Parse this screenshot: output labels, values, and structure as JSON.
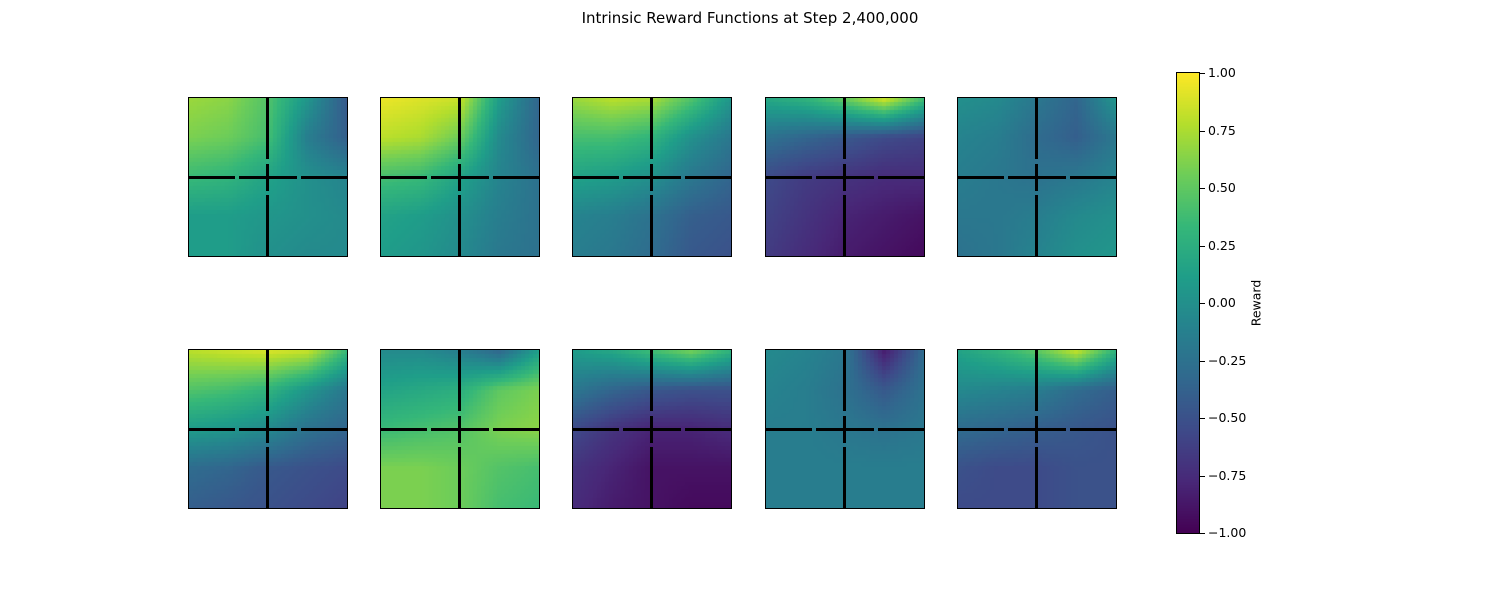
{
  "chart_data": {
    "type": "heatmap",
    "title": "Intrinsic Reward Functions at Step 2,400,000",
    "layout": {
      "rows": 2,
      "cols": 5
    },
    "colormap": "viridis",
    "value_range": [
      -1.0,
      1.0
    ],
    "grid_resolution": 5,
    "colorbar": {
      "label": "Reward",
      "ticks": [
        1.0,
        0.75,
        0.5,
        0.25,
        0.0,
        -0.25,
        -0.5,
        -0.75,
        -1.0
      ],
      "tick_labels": [
        "1.00",
        "0.75",
        "0.50",
        "0.25",
        "0.00",
        "−0.25",
        "−0.50",
        "−0.75",
        "−1.00"
      ]
    },
    "panels": [
      {
        "values": [
          [
            0.7,
            0.65,
            0.45,
            0.05,
            -0.45
          ],
          [
            0.6,
            0.55,
            0.4,
            -0.15,
            -0.4
          ],
          [
            0.35,
            0.3,
            0.15,
            0.0,
            -0.1
          ],
          [
            0.1,
            0.1,
            0.05,
            0.0,
            -0.05
          ],
          [
            0.1,
            0.1,
            0.0,
            -0.05,
            -0.05
          ]
        ]
      },
      {
        "values": [
          [
            0.95,
            0.9,
            0.85,
            0.1,
            -0.35
          ],
          [
            0.8,
            0.75,
            0.55,
            -0.05,
            -0.35
          ],
          [
            0.4,
            0.35,
            0.15,
            -0.1,
            -0.25
          ],
          [
            0.15,
            0.1,
            0.0,
            -0.15,
            -0.25
          ],
          [
            0.1,
            0.05,
            -0.05,
            -0.2,
            -0.25
          ]
        ]
      },
      {
        "values": [
          [
            0.7,
            0.8,
            0.75,
            0.45,
            0.05
          ],
          [
            0.4,
            0.4,
            0.3,
            0.0,
            -0.2
          ],
          [
            0.15,
            0.1,
            0.0,
            -0.2,
            -0.35
          ],
          [
            -0.1,
            -0.15,
            -0.25,
            -0.4,
            -0.45
          ],
          [
            -0.15,
            -0.2,
            -0.3,
            -0.45,
            -0.5
          ]
        ]
      },
      {
        "values": [
          [
            0.2,
            0.3,
            0.55,
            0.9,
            0.4
          ],
          [
            -0.25,
            -0.35,
            -0.45,
            -0.55,
            -0.6
          ],
          [
            -0.55,
            -0.65,
            -0.7,
            -0.75,
            -0.75
          ],
          [
            -0.6,
            -0.7,
            -0.8,
            -0.85,
            -0.9
          ],
          [
            -0.65,
            -0.75,
            -0.85,
            -0.9,
            -0.95
          ]
        ]
      },
      {
        "values": [
          [
            0.0,
            -0.05,
            -0.2,
            -0.35,
            0.05
          ],
          [
            -0.1,
            -0.15,
            -0.3,
            -0.4,
            -0.2
          ],
          [
            -0.15,
            -0.2,
            -0.25,
            -0.2,
            -0.1
          ],
          [
            -0.2,
            -0.2,
            -0.15,
            -0.05,
            0.0
          ],
          [
            -0.25,
            -0.2,
            -0.1,
            0.0,
            0.05
          ]
        ]
      },
      {
        "values": [
          [
            0.8,
            0.85,
            0.9,
            0.85,
            0.35
          ],
          [
            0.45,
            0.4,
            0.3,
            0.05,
            -0.2
          ],
          [
            0.1,
            0.05,
            -0.05,
            -0.25,
            -0.35
          ],
          [
            -0.3,
            -0.35,
            -0.45,
            -0.5,
            -0.55
          ],
          [
            -0.4,
            -0.45,
            -0.5,
            -0.55,
            -0.6
          ]
        ]
      },
      {
        "values": [
          [
            -0.05,
            -0.05,
            -0.15,
            -0.35,
            0.1
          ],
          [
            0.15,
            0.2,
            0.25,
            0.5,
            0.6
          ],
          [
            0.35,
            0.4,
            0.45,
            0.6,
            0.65
          ],
          [
            0.6,
            0.6,
            0.55,
            0.45,
            0.4
          ],
          [
            0.6,
            0.6,
            0.55,
            0.4,
            0.35
          ]
        ]
      },
      {
        "values": [
          [
            0.1,
            0.2,
            0.4,
            0.6,
            0.3
          ],
          [
            -0.2,
            -0.35,
            -0.45,
            -0.5,
            -0.5
          ],
          [
            -0.55,
            -0.7,
            -0.8,
            -0.8,
            -0.75
          ],
          [
            -0.7,
            -0.8,
            -0.9,
            -0.9,
            -0.9
          ],
          [
            -0.75,
            -0.85,
            -0.9,
            -0.95,
            -0.95
          ]
        ]
      },
      {
        "values": [
          [
            -0.05,
            -0.1,
            -0.2,
            -0.85,
            -0.3
          ],
          [
            -0.1,
            -0.15,
            -0.25,
            -0.45,
            -0.25
          ],
          [
            -0.15,
            -0.15,
            -0.2,
            -0.25,
            -0.2
          ],
          [
            -0.15,
            -0.15,
            -0.15,
            -0.15,
            -0.15
          ],
          [
            -0.15,
            -0.15,
            -0.15,
            -0.15,
            -0.15
          ]
        ]
      },
      {
        "values": [
          [
            0.15,
            0.3,
            0.5,
            0.85,
            0.3
          ],
          [
            -0.05,
            -0.1,
            -0.15,
            -0.3,
            -0.4
          ],
          [
            -0.3,
            -0.35,
            -0.4,
            -0.45,
            -0.5
          ],
          [
            -0.5,
            -0.55,
            -0.55,
            -0.5,
            -0.5
          ],
          [
            -0.55,
            -0.55,
            -0.55,
            -0.5,
            -0.5
          ]
        ]
      }
    ]
  }
}
